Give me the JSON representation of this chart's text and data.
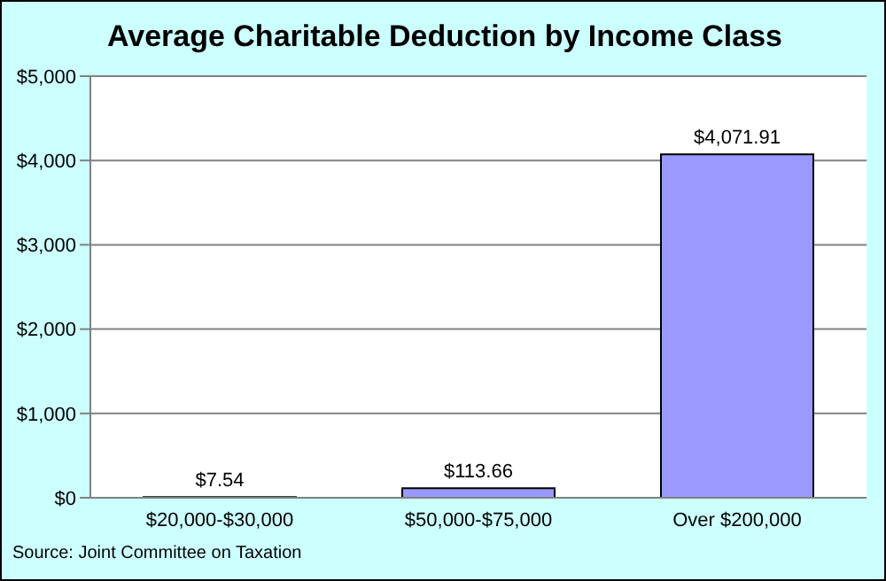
{
  "chart_data": {
    "type": "bar",
    "title": "Average Charitable Deduction by Income Class",
    "categories": [
      "$20,000-$30,000",
      "$50,000-$75,000",
      "Over $200,000"
    ],
    "values": [
      7.54,
      113.66,
      4071.91
    ],
    "value_labels": [
      "$7.54",
      "$113.66",
      "$4,071.91"
    ],
    "color": "#9999ff",
    "ylim": [
      0,
      5000
    ],
    "yticks": [
      {
        "value": 0,
        "label": "$0"
      },
      {
        "value": 1000,
        "label": "$1,000"
      },
      {
        "value": 2000,
        "label": "$2,000"
      },
      {
        "value": 3000,
        "label": "$3,000"
      },
      {
        "value": 4000,
        "label": "$4,000"
      },
      {
        "value": 5000,
        "label": "$5,000"
      }
    ],
    "grid": "y",
    "legend": false,
    "annotations": [
      "Source: Joint Committee on Taxation"
    ]
  }
}
